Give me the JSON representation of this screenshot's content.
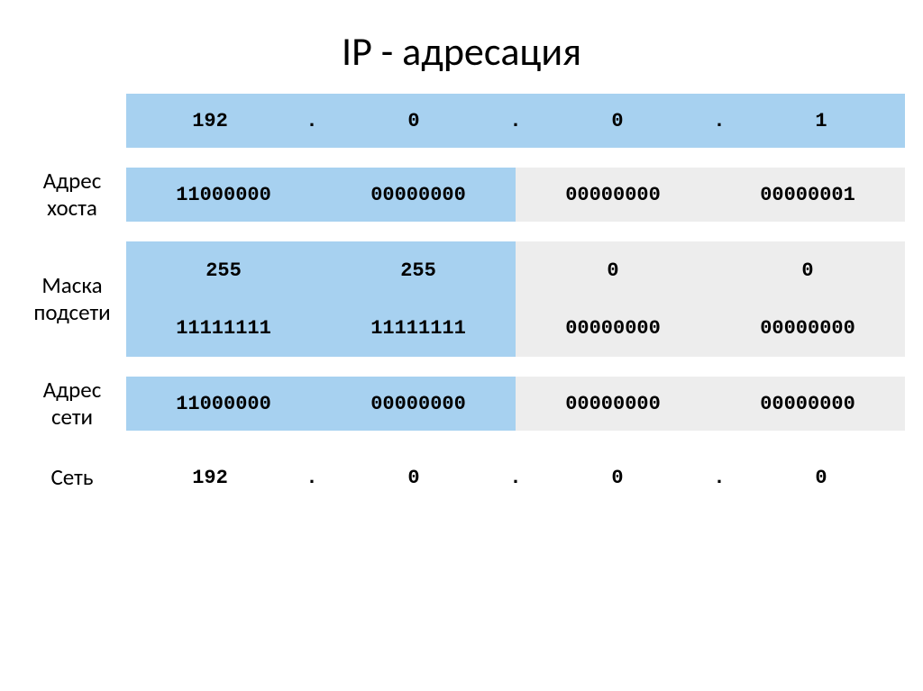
{
  "title": "IP - адресация",
  "colors": {
    "blue": "#a7d1f0",
    "gray": "#ededed",
    "white": "#ffffff"
  },
  "labels": {
    "host": [
      "Адрес",
      "хоста"
    ],
    "mask": [
      "Маска",
      "подсети"
    ],
    "net": [
      "Адрес",
      "сети"
    ],
    "network": "Сеть"
  },
  "ip_decimal": [
    "192",
    "0",
    "0",
    "1"
  ],
  "host_binary": [
    "11000000",
    "00000000",
    "00000000",
    "00000001"
  ],
  "mask_decimal": [
    "255",
    "255",
    "0",
    "0"
  ],
  "mask_binary": [
    "11111111",
    "11111111",
    "00000000",
    "00000000"
  ],
  "net_binary": [
    "11000000",
    "00000000",
    "00000000",
    "00000000"
  ],
  "net_decimal": [
    "192",
    "0",
    "0",
    "0"
  ],
  "dot": "."
}
